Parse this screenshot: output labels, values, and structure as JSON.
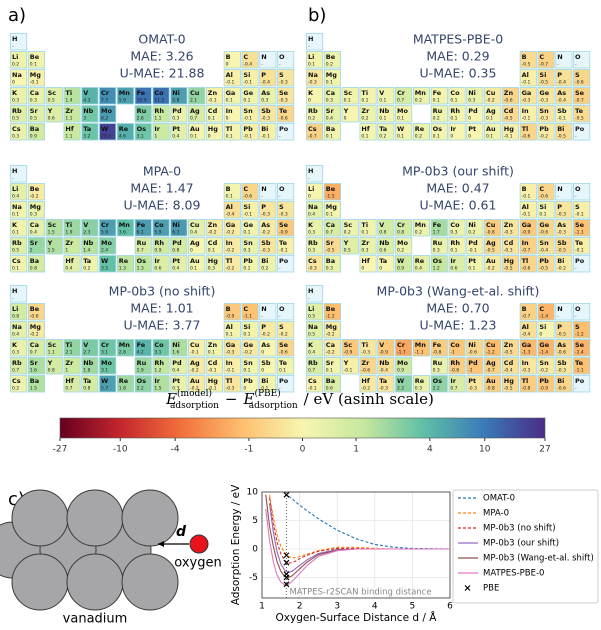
{
  "panel_labels": [
    "a)",
    "b)",
    "c)"
  ],
  "periodic_tables": {
    "elements": [
      "H",
      "Li",
      "Be",
      "B",
      "C",
      "N",
      "O",
      "Na",
      "Mg",
      "Al",
      "Si",
      "P",
      "S",
      "K",
      "Ca",
      "Sc",
      "Ti",
      "V",
      "Cr",
      "Mn",
      "Fe",
      "Co",
      "Ni",
      "Cu",
      "Zn",
      "Ga",
      "Ge",
      "As",
      "Se",
      "Rb",
      "Sr",
      "Y",
      "Zr",
      "Nb",
      "Mo",
      "Ru",
      "Rh",
      "Pd",
      "Ag",
      "Cd",
      "In",
      "Sn",
      "Sb",
      "Te",
      "Cs",
      "Ba",
      "Hf",
      "Ta",
      "W",
      "Re",
      "Os",
      "Ir",
      "Pt",
      "Au",
      "Hg",
      "Tl",
      "Pb",
      "Bi",
      "Po"
    ],
    "missing_label": "-",
    "panels": [
      {
        "title": "OMAT-0",
        "mae": "MAE: 3.26",
        "u_mae": "U-MAE: 21.88",
        "values": [
          null,
          0.2,
          0.1,
          0.0,
          -0.4,
          null,
          null,
          0.0,
          -0.1,
          -0.1,
          -0.1,
          -0.4,
          -0.3,
          0.3,
          0.3,
          0.5,
          1.4,
          4.3,
          7.7,
          5.9,
          10.9,
          11.2,
          5.8,
          2.1,
          -0.1,
          0.1,
          0.1,
          0.3,
          -0.3,
          0.5,
          0.5,
          0.6,
          1.1,
          3.0,
          6.2,
          2.6,
          1.1,
          0.3,
          0.7,
          0.1,
          0.0,
          -0.1,
          -0.3,
          -0.6,
          0.3,
          0.9,
          1.1,
          3.2,
          20.3,
          4.6,
          3.1,
          1.0,
          0.4,
          0.1,
          0.0,
          0.1,
          -0.1,
          -0.1,
          null
        ]
      },
      {
        "title": "MATPES-PBE-0",
        "mae": "MAE: 0.29",
        "u_mae": "U-MAE: 0.35",
        "values": [
          null,
          0.1,
          0.2,
          -0.5,
          -0.7,
          null,
          null,
          -0.3,
          0.1,
          -0.1,
          -0.5,
          -0.4,
          -0.6,
          0.0,
          0.3,
          0.1,
          0.1,
          0.1,
          0.7,
          0.2,
          0.1,
          0.1,
          0.3,
          -0.2,
          -0.6,
          -0.3,
          -0.3,
          -0.4,
          -0.7,
          0.2,
          0.4,
          0.0,
          0.2,
          0.1,
          0.1,
          0.2,
          0.1,
          0.0,
          0.1,
          -0.5,
          -0.1,
          -0.3,
          -0.1,
          -0.5,
          -0.7,
          0.1,
          0.1,
          0.2,
          0.1,
          0.2,
          0.1,
          0.0,
          0.0,
          0.1,
          -0.1,
          -0.6,
          -0.2,
          -0.5,
          null
        ]
      },
      {
        "title": "MPA-0",
        "mae": "MAE: 1.47",
        "u_mae": "U-MAE: 8.09",
        "values": [
          null,
          0.4,
          -0.2,
          0.1,
          -0.6,
          null,
          null,
          0.1,
          0.3,
          -0.4,
          -0.1,
          -0.3,
          -0.3,
          0.1,
          0.4,
          1.5,
          1.9,
          2.3,
          5.9,
          3.6,
          6.1,
          5.9,
          6.3,
          0.4,
          -0.2,
          -0.2,
          0.1,
          -0.2,
          -0.9,
          0.5,
          2.0,
          1.5,
          1.0,
          1.4,
          2.4,
          0.7,
          0.9,
          0.8,
          0.0,
          0.1,
          -0.2,
          0.3,
          -0.3,
          -0.1,
          0.1,
          0.8,
          0.4,
          0.2,
          3.5,
          1.3,
          1.3,
          0.6,
          0.4,
          0.1,
          0.3,
          -0.2,
          0.1,
          0.2,
          null
        ]
      },
      {
        "title": "MP-0b3 (our shift)",
        "mae": "MAE: 0.47",
        "u_mae": "U-MAE: 0.61",
        "values": [
          null,
          0.0,
          -1.5,
          -0.1,
          -0.6,
          null,
          null,
          0.4,
          0.1,
          -0.1,
          0.1,
          -0.3,
          -0.1,
          0.3,
          0.7,
          0.2,
          0.1,
          0.8,
          0.8,
          0.2,
          1.7,
          0.3,
          0.2,
          -0.8,
          -0.3,
          -0.9,
          -0.6,
          -0.3,
          -1.1,
          0.3,
          -0.5,
          0.5,
          0.3,
          0.6,
          0.2,
          0.3,
          0.1,
          -0.1,
          -0.5,
          -0.3,
          -0.7,
          -0.4,
          -0.5,
          -0.1,
          -0.3,
          0.3,
          0.0,
          0.0,
          0.9,
          0.4,
          1.2,
          0.6,
          0.1,
          -0.2,
          -0.5,
          -0.6,
          -0.5,
          -0.2,
          null
        ]
      },
      {
        "title": "MP-0b3 (no shift)",
        "mae": "MAE: 1.01",
        "u_mae": "U-MAE: 3.77",
        "values": [
          null,
          0.8,
          -0.6,
          -0.9,
          -1.1,
          null,
          null,
          0.4,
          -0.2,
          0.1,
          0.1,
          -0.2,
          -0.2,
          0.3,
          0.7,
          1.1,
          2.1,
          2.7,
          3.1,
          2.8,
          4.2,
          3.1,
          1.6,
          -0.1,
          0.1,
          -0.3,
          -0.2,
          0.0,
          -0.6,
          0.7,
          1.6,
          0.8,
          1.0,
          1.8,
          3.1,
          1.9,
          1.2,
          0.4,
          -0.2,
          -0.1,
          -0.1,
          0.1,
          0.0,
          0.1,
          0.2,
          1.5,
          0.7,
          0.8,
          5.7,
          1.8,
          2.2,
          1.5,
          0.3,
          -0.2,
          -0.1,
          -0.3,
          0.0,
          0.1,
          null
        ]
      },
      {
        "title": "MP-0b3 (Wang-et-al. shift)",
        "mae": "MAE: 0.70",
        "u_mae": "U-MAE: 1.23",
        "values": [
          null,
          0.5,
          -1.2,
          -0.7,
          -1.4,
          null,
          null,
          0.5,
          -0.2,
          -0.4,
          0.0,
          -0.5,
          -1.2,
          0.4,
          -0.2,
          -0.9,
          -0.3,
          -0.9,
          -1.7,
          -1.1,
          -0.8,
          -1.0,
          -0.6,
          -1.2,
          -0.5,
          -1.3,
          -1.4,
          -0.6,
          -1.4,
          0.7,
          0.1,
          -0.1,
          -0.6,
          -0.4,
          0.9,
          0.3,
          -0.8,
          -1.0,
          -0.7,
          -0.4,
          -0.3,
          -0.2,
          -0.3,
          -1.1,
          -0.1,
          0.6,
          -0.2,
          -0.3,
          2.2,
          0.3,
          2.2,
          0.7,
          -0.3,
          -0.8,
          -0.5,
          -0.8,
          -0.9,
          -0.6,
          null
        ]
      }
    ]
  },
  "colorbar": {
    "label_e": "E",
    "label_sup1": "(model)",
    "label_sub": "adsorption",
    "label_minus": "−",
    "label_sup2": "(PBE)",
    "label_rest": "/ eV (asinh scale)",
    "clim": [
      -27,
      27
    ],
    "ticks": [
      -27,
      -10,
      -4,
      -1,
      0,
      1,
      4,
      10,
      27
    ],
    "colors": [
      "#67001f",
      "#c4262e",
      "#f2703a",
      "#fdbf6f",
      "#f7f5b0",
      "#c7e89f",
      "#5fbfa6",
      "#3a7ab8",
      "#4a2b86"
    ]
  },
  "diagram": {
    "d_label": "d",
    "oxygen": "oxygen",
    "vanadium": "vanadium"
  },
  "chart_data": {
    "type": "line",
    "x_label": "Oxygen-Surface Distance d / Å",
    "y_label": "Adsorption Energy / eV",
    "xlim": [
      1,
      6
    ],
    "ylim": [
      -8.6,
      10
    ],
    "xticks": [
      1,
      2,
      3,
      4,
      5,
      6
    ],
    "yticks": [
      -5,
      0,
      5,
      10
    ],
    "grid": true,
    "x": [
      1.1,
      1.2,
      1.3,
      1.4,
      1.5,
      1.6,
      1.7,
      1.8,
      1.9,
      2.0,
      2.2,
      2.5,
      3.0,
      3.5,
      4.0,
      4.5,
      5.0,
      6.0
    ],
    "series": [
      {
        "name": "OMAT-0",
        "color": "#1f77b4",
        "dashed": true,
        "values": [
          null,
          null,
          null,
          null,
          null,
          9.8,
          9.3,
          8.8,
          8.2,
          7.7,
          6.7,
          5.3,
          3.3,
          1.8,
          0.8,
          0.3,
          0.1,
          0.0
        ]
      },
      {
        "name": "MPA-0",
        "color": "#ff7f0e",
        "dashed": true,
        "values": [
          null,
          9.5,
          5.5,
          2.5,
          0.5,
          -0.6,
          -1.3,
          -1.5,
          -1.5,
          -1.3,
          -0.9,
          -0.3,
          0.3,
          0.3,
          0.1,
          0.0,
          0.0,
          0.0
        ]
      },
      {
        "name": "MP-0b3 (no shift)",
        "color": "#d62728",
        "dashed": true,
        "values": [
          null,
          9.0,
          4.5,
          1.2,
          -0.8,
          -2.0,
          -2.5,
          -2.4,
          -2.1,
          -1.7,
          -1.1,
          -0.4,
          0.1,
          0.1,
          0.0,
          0.0,
          0.0,
          0.0
        ]
      },
      {
        "name": "MP-0b3 (our shift)",
        "color": "#9467bd",
        "dashed": false,
        "values": [
          null,
          8.0,
          3.0,
          -0.5,
          -2.6,
          -3.7,
          -4.1,
          -3.9,
          -3.4,
          -2.9,
          -1.9,
          -0.8,
          -0.1,
          0.0,
          0.0,
          0.0,
          0.0,
          0.0
        ]
      },
      {
        "name": "MP-0b3 (Wang-et-al. shift)",
        "color": "#8c564b",
        "dashed": false,
        "values": [
          9.5,
          4.0,
          0.5,
          -2.2,
          -3.9,
          -4.8,
          -5.0,
          -4.7,
          -4.1,
          -3.5,
          -2.3,
          -1.0,
          -0.2,
          0.0,
          0.0,
          0.0,
          0.0,
          0.0
        ]
      },
      {
        "name": "MATPES-PBE-0",
        "color": "#e377c2",
        "dashed": false,
        "values": [
          7.0,
          1.5,
          -2.2,
          -4.6,
          -5.8,
          -6.3,
          -6.2,
          -5.7,
          -5.0,
          -4.3,
          -2.9,
          -1.3,
          -0.3,
          0.0,
          0.0,
          0.0,
          0.0,
          0.0
        ]
      }
    ],
    "markers": {
      "name": "PBE",
      "color": "#000000",
      "x": [
        1.65,
        1.65,
        1.65,
        1.65,
        1.65,
        1.65
      ],
      "values": [
        9.5,
        -1.1,
        -2.4,
        -4.4,
        -5.0,
        -6.2
      ]
    },
    "binding_distance": 1.65,
    "annotation": "MATPES-r2SCAN binding distance"
  }
}
